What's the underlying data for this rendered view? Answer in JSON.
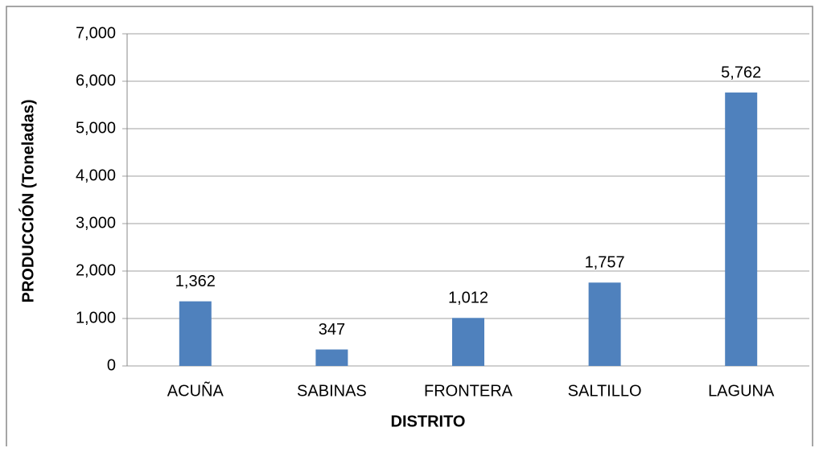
{
  "chart_data": {
    "type": "bar",
    "xlabel": "DISTRITO",
    "ylabel": "PRODUCCIÓN (Toneladas)",
    "categories": [
      "ACUÑA",
      "SABINAS",
      "FRONTERA",
      "SALTILLO",
      "LAGUNA"
    ],
    "values": [
      1362,
      347,
      1012,
      1757,
      5762
    ],
    "value_labels": [
      "1,362",
      "347",
      "1,012",
      "1,757",
      "5,762"
    ],
    "color": "#4f81bd",
    "ylim": [
      0,
      7000
    ],
    "yticks": [
      0,
      {
        "value": 1000,
        "label": "1,000"
      },
      {
        "value": 2000,
        "label": "2,000"
      },
      {
        "value": 3000,
        "label": "3,000"
      },
      {
        "value": 4000,
        "label": "4,000"
      },
      {
        "value": 5000,
        "label": "5,000"
      },
      {
        "value": 6000,
        "label": "6,000"
      },
      {
        "value": 7000,
        "label": "7,000"
      }
    ],
    "grid": true
  }
}
